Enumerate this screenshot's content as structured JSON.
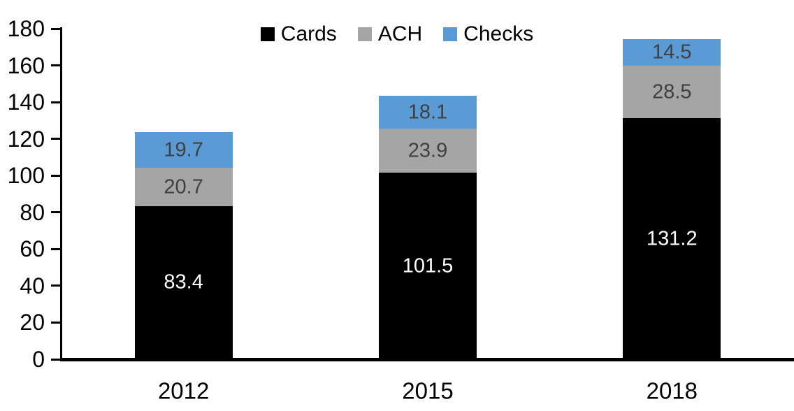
{
  "chart_data": {
    "type": "bar",
    "stacked": true,
    "title": "",
    "xlabel": "",
    "ylabel": "",
    "categories": [
      "2012",
      "2015",
      "2018"
    ],
    "series": [
      {
        "name": "Cards",
        "values": [
          83.4,
          101.5,
          131.2
        ],
        "color": "#000000",
        "label_color": "#ffffff"
      },
      {
        "name": "ACH",
        "values": [
          20.7,
          23.9,
          28.5
        ],
        "color": "#a5a5a5",
        "label_color": "#404040"
      },
      {
        "name": "Checks",
        "values": [
          19.7,
          18.1,
          14.5
        ],
        "color": "#5b9bd5",
        "label_color": "#404040"
      }
    ],
    "totals": [
      123.8,
      143.5,
      174.2
    ],
    "ylim": [
      0,
      180
    ],
    "ytick_step": 20,
    "y_tick_labels": [
      "0",
      "20",
      "40",
      "60",
      "80",
      "100",
      "120",
      "140",
      "160",
      "180"
    ],
    "legend": {
      "position": "top-center",
      "entries": [
        {
          "label": "Cards",
          "color": "#000000"
        },
        {
          "label": "ACH",
          "color": "#a5a5a5"
        },
        {
          "label": "Checks",
          "color": "#5b9bd5"
        }
      ]
    },
    "grid": false,
    "data_labels": true,
    "axis_color": "#000000",
    "background_color": "#ffffff"
  }
}
